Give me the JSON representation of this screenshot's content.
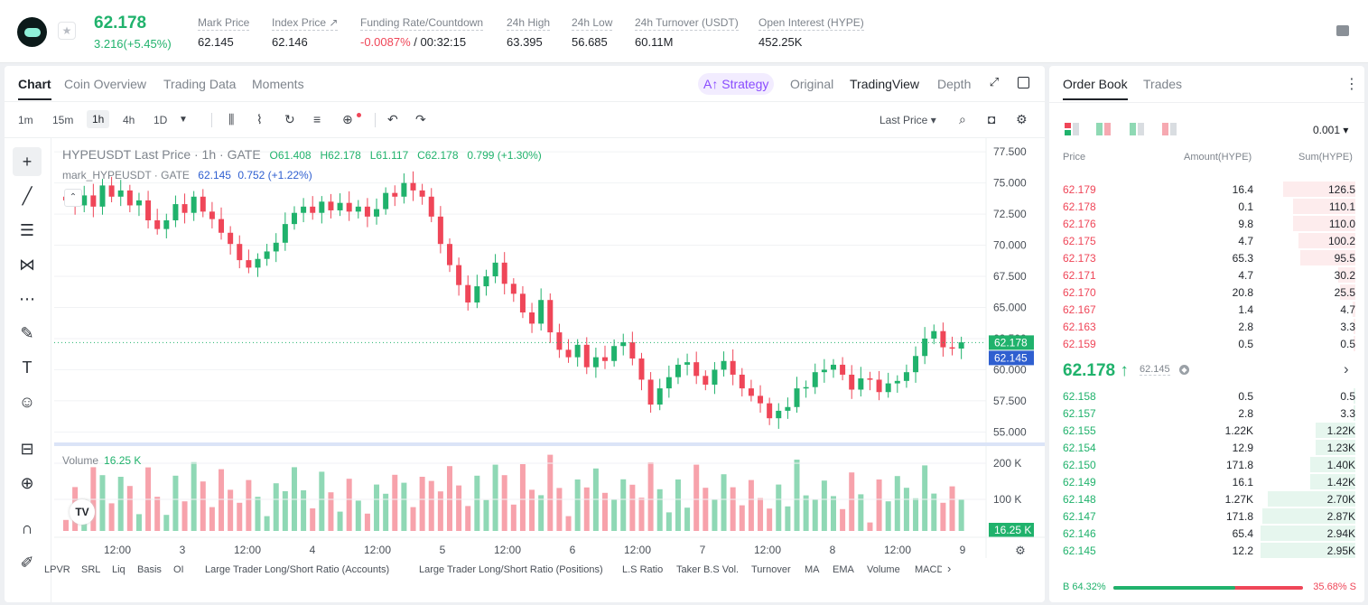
{
  "ticker": {
    "last": "62.178",
    "change": "3.216(+5.45%)"
  },
  "stats": [
    {
      "label": "Mark Price",
      "value": "62.145"
    },
    {
      "label": "Index Price ↗",
      "value": "62.146"
    },
    {
      "label": "Funding Rate/Countdown",
      "value": "-0.0087%",
      "value2": " / 00:32:15"
    },
    {
      "label": "24h High",
      "value": "63.395"
    },
    {
      "label": "24h Low",
      "value": "56.685"
    },
    {
      "label": "24h Turnover (USDT)",
      "value": "60.11M"
    },
    {
      "label": "Open Interest (HYPE)",
      "value": "452.25K"
    }
  ],
  "chart_tabs": [
    "Chart",
    "Coin Overview",
    "Trading Data",
    "Moments"
  ],
  "view_tabs": {
    "strategy": "A↑ Strategy",
    "original": "Original",
    "tradingview": "TradingView",
    "depth": "Depth"
  },
  "timeframes": [
    "1m",
    "15m",
    "1h",
    "4h",
    "1D"
  ],
  "price_type": "Last Price ▾",
  "legend": {
    "main": "HYPEUSDT Last Price · 1h · GATE",
    "o": "O61.408",
    "h": "H62.178",
    "l": "L61.117",
    "c": "C62.178",
    "chg": "0.799 (+1.30%)",
    "mark": "mark_HYPEUSDT · GATE",
    "mark_val": "62.145",
    "mark_chg": "0.752 (+1.22%)"
  },
  "volume": {
    "label": "Volume",
    "value": "16.25 K"
  },
  "indicators": [
    "LPVR",
    "SRL",
    "Liq",
    "Basis",
    "OI",
    "Large Trader Long/Short Ratio (Accounts)",
    "Large Trader Long/Short Ratio (Positions)",
    "L.S Ratio",
    "Taker B.S Vol.",
    "Turnover",
    "MA",
    "EMA",
    "Volume",
    "MACD"
  ],
  "colors": {
    "up": "#20b26c",
    "down": "#ef4658",
    "mark": "#2f5fd0",
    "accent": "#8a4cff"
  },
  "chart_data": {
    "type": "candlestick",
    "price_axis": [
      "77.500",
      "75.000",
      "72.500",
      "70.000",
      "67.500",
      "65.000",
      "62.500",
      "60.000",
      "57.500",
      "55.000"
    ],
    "ylim": [
      54.3,
      78.6
    ],
    "time_axis": [
      "12:00",
      "3",
      "12:00",
      "4",
      "12:00",
      "5",
      "12:00",
      "6",
      "12:00",
      "7",
      "12:00",
      "8",
      "12:00",
      "9"
    ],
    "last_price_tag": "62.178",
    "mark_price_tag": "62.145",
    "volume_axis": [
      "200 K",
      "100 K"
    ],
    "volume_tag": "16.25 K",
    "closes_approx": [
      73.6,
      73.2,
      74.0,
      73.1,
      74.8,
      73.9,
      74.4,
      73.2,
      73.6,
      72.0,
      71.3,
      72.0,
      73.3,
      72.6,
      73.9,
      72.7,
      72.1,
      71.0,
      70.1,
      68.8,
      68.2,
      68.9,
      69.5,
      70.2,
      71.7,
      72.6,
      73.1,
      72.6,
      73.5,
      72.8,
      73.4,
      72.7,
      73.1,
      72.3,
      72.9,
      74.2,
      73.9,
      75.0,
      74.4,
      73.9,
      72.3,
      70.1,
      68.4,
      66.8,
      65.4,
      66.7,
      67.5,
      68.6,
      66.9,
      66.1,
      64.6,
      63.7,
      65.6,
      63.0,
      61.6,
      61.0,
      62.0,
      60.2,
      61.0,
      60.7,
      61.9,
      62.2,
      60.9,
      59.2,
      57.2,
      58.5,
      59.4,
      60.4,
      60.6,
      59.5,
      58.8,
      60.0,
      60.7,
      59.6,
      58.5,
      57.9,
      57.3,
      56.1,
      56.7,
      57.0,
      58.5,
      58.6,
      59.8,
      60.0,
      60.4,
      59.6,
      58.4,
      59.3,
      59.2,
      58.2,
      58.9,
      59.1,
      59.8,
      61.1,
      62.5,
      63.1,
      61.8,
      61.7,
      62.2
    ]
  },
  "orderbook": {
    "tabs": [
      "Order Book",
      "Trades"
    ],
    "precision": "0.001 ▾",
    "headers": [
      "Price",
      "Amount(HYPE)",
      "Sum(HYPE)"
    ],
    "asks": [
      [
        "62.179",
        "16.4",
        "126.5",
        0.38
      ],
      [
        "62.178",
        "0.1",
        "110.1",
        0.33
      ],
      [
        "62.176",
        "9.8",
        "110.0",
        0.33
      ],
      [
        "62.175",
        "4.7",
        "100.2",
        0.3
      ],
      [
        "62.173",
        "65.3",
        "95.5",
        0.29
      ],
      [
        "62.171",
        "4.7",
        "30.2",
        0.09
      ],
      [
        "62.170",
        "20.8",
        "25.5",
        0.08
      ],
      [
        "62.167",
        "1.4",
        "4.7",
        0.015
      ],
      [
        "62.163",
        "2.8",
        "3.3",
        0.01
      ],
      [
        "62.159",
        "0.5",
        "0.5",
        0.002
      ]
    ],
    "mid_price": "62.178 ↑",
    "mid_mark": "62.145",
    "bids": [
      [
        "62.158",
        "0.5",
        "0.5",
        0.002
      ],
      [
        "62.157",
        "2.8",
        "3.3",
        0.01
      ],
      [
        "62.155",
        "1.22K",
        "1.22K",
        0.21
      ],
      [
        "62.154",
        "12.9",
        "1.23K",
        0.21
      ],
      [
        "62.150",
        "171.8",
        "1.40K",
        0.24
      ],
      [
        "62.149",
        "16.1",
        "1.42K",
        0.24
      ],
      [
        "62.148",
        "1.27K",
        "2.70K",
        0.46
      ],
      [
        "62.147",
        "171.8",
        "2.87K",
        0.49
      ],
      [
        "62.146",
        "65.4",
        "2.94K",
        0.5
      ],
      [
        "62.145",
        "12.2",
        "2.95K",
        0.5
      ]
    ],
    "buy_ratio": "B 64.32%",
    "sell_ratio": "35.68% S",
    "buy_frac": 0.6432
  }
}
